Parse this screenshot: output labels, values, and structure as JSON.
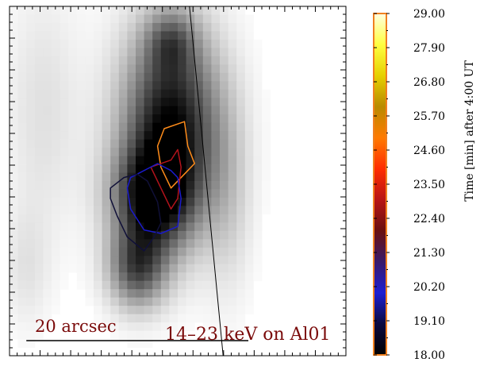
{
  "chart_data": {
    "type": "heatmap",
    "title": "",
    "image": {
      "description_free": true,
      "colormap": "inverted-grayscale",
      "blobs": [
        {
          "x": 0.48,
          "y": 0.35,
          "sx": 0.1,
          "sy": 0.2,
          "amp": 1.0
        },
        {
          "x": 0.42,
          "y": 0.55,
          "sx": 0.08,
          "sy": 0.1,
          "amp": 0.75
        },
        {
          "x": 0.38,
          "y": 0.75,
          "sx": 0.06,
          "sy": 0.08,
          "amp": 0.65
        },
        {
          "x": 0.48,
          "y": 0.1,
          "sx": 0.05,
          "sy": 0.06,
          "amp": 0.35
        },
        {
          "x": 0.1,
          "y": 0.3,
          "sx": 0.08,
          "sy": 0.25,
          "amp": 0.12
        },
        {
          "x": 0.05,
          "y": 0.75,
          "sx": 0.05,
          "sy": 0.12,
          "amp": 0.1
        },
        {
          "x": 0.65,
          "y": 0.55,
          "sx": 0.05,
          "sy": 0.2,
          "amp": 0.15
        }
      ]
    },
    "contours": [
      {
        "name": "",
        "time_min": 25.7,
        "color": "#ff8c1a",
        "points": [
          [
            0.46,
            0.35
          ],
          [
            0.52,
            0.33
          ],
          [
            0.53,
            0.4
          ],
          [
            0.55,
            0.45
          ],
          [
            0.52,
            0.48
          ],
          [
            0.48,
            0.52
          ],
          [
            0.45,
            0.46
          ],
          [
            0.44,
            0.4
          ]
        ]
      },
      {
        "name": "",
        "time_min": 22.9,
        "color": "#b3131b",
        "points": [
          [
            0.48,
            0.44
          ],
          [
            0.5,
            0.41
          ],
          [
            0.51,
            0.46
          ],
          [
            0.5,
            0.55
          ],
          [
            0.48,
            0.58
          ],
          [
            0.45,
            0.52
          ],
          [
            0.42,
            0.46
          ]
        ]
      },
      {
        "name": "",
        "time_min": 20.2,
        "color": "#1a1acc",
        "points": [
          [
            0.36,
            0.49
          ],
          [
            0.44,
            0.45
          ],
          [
            0.48,
            0.47
          ],
          [
            0.5,
            0.49
          ],
          [
            0.51,
            0.55
          ],
          [
            0.5,
            0.63
          ],
          [
            0.45,
            0.65
          ],
          [
            0.4,
            0.64
          ],
          [
            0.36,
            0.58
          ],
          [
            0.35,
            0.52
          ]
        ]
      },
      {
        "name": "",
        "time_min": 19.0,
        "color": "#101038",
        "points": [
          [
            0.3,
            0.52
          ],
          [
            0.34,
            0.49
          ],
          [
            0.38,
            0.48
          ],
          [
            0.41,
            0.5
          ],
          [
            0.44,
            0.56
          ],
          [
            0.45,
            0.62
          ],
          [
            0.43,
            0.66
          ],
          [
            0.4,
            0.7
          ],
          [
            0.35,
            0.66
          ],
          [
            0.32,
            0.6
          ],
          [
            0.3,
            0.55
          ]
        ]
      }
    ],
    "limb_line": {
      "x0": 0.535,
      "y0": 0.0,
      "x1": 0.635,
      "y1": 1.0
    },
    "scale_bar": {
      "label": "20 arcsec",
      "length_frac": 0.66,
      "x_start_frac": 0.05
    },
    "annotation": "14–23 keV on Al01",
    "colorbar": {
      "label": "Time [min] after  4:00 UT",
      "ticks": [
        "29.00",
        "27.90",
        "26.80",
        "25.70",
        "24.60",
        "23.50",
        "22.40",
        "21.30",
        "20.20",
        "19.10",
        "18.00"
      ],
      "min": 18.0,
      "max": 29.0,
      "colormap_stops": [
        "#000000",
        "#0a0a40",
        "#1e1ed2",
        "#3a1a6a",
        "#6a1010",
        "#b81515",
        "#ff2d00",
        "#ff7a00",
        "#b98a00",
        "#e6d000",
        "#ffff40",
        "#ffffe0"
      ],
      "frame_color": "#f08020"
    },
    "grid": false
  }
}
